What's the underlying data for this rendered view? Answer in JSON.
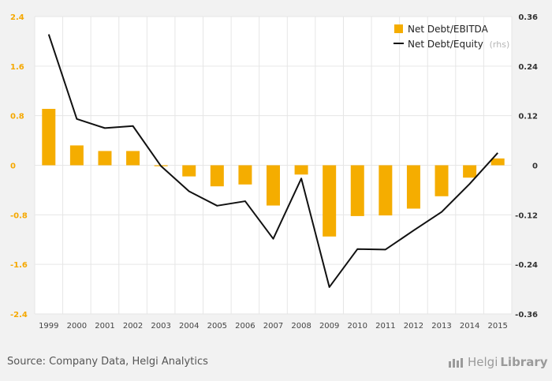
{
  "chart_data": {
    "type": "bar",
    "categories": [
      "1999",
      "2000",
      "2001",
      "2002",
      "2003",
      "2004",
      "2005",
      "2006",
      "2007",
      "2008",
      "2009",
      "2010",
      "2011",
      "2012",
      "2013",
      "2014",
      "2015"
    ],
    "series": [
      {
        "name": "Net Debt/EBITDA",
        "type": "bar",
        "axis": "left",
        "color": "#f5ad00",
        "values": [
          0.91,
          0.32,
          0.23,
          0.23,
          -0.01,
          -0.18,
          -0.34,
          -0.31,
          -0.65,
          -0.15,
          -1.15,
          -0.82,
          -0.81,
          -0.7,
          -0.5,
          -0.2,
          0.11
        ]
      },
      {
        "name": "Net Debt/Equity",
        "name_suffix": "(rhs)",
        "type": "line",
        "axis": "right",
        "color": "#111111",
        "values": [
          0.317,
          0.112,
          0.09,
          0.095,
          -0.002,
          -0.063,
          -0.098,
          -0.087,
          -0.178,
          -0.032,
          -0.295,
          -0.203,
          -0.204,
          -0.158,
          -0.113,
          -0.045,
          0.03
        ]
      }
    ],
    "y_left": {
      "min": -2.4,
      "max": 2.4,
      "ticks": [
        "2.4",
        "1.6",
        "0.8",
        "0",
        "-0.8",
        "-1.6",
        "-2.4"
      ]
    },
    "y_right": {
      "min": -0.36,
      "max": 0.36,
      "ticks": [
        "0.36",
        "0.24",
        "0.12",
        "0",
        "-0.12",
        "-0.24",
        "-0.36"
      ]
    },
    "grid": true,
    "legend_position": "top-right"
  },
  "footer": {
    "source": "Source: Company Data, Helgi Analytics",
    "brand_light": "Helgi",
    "brand_bold": "Library"
  },
  "colors": {
    "background": "#f2f2f2",
    "plot_background": "#ffffff",
    "grid": "#e6e6e6",
    "bar": "#f5ad00",
    "line": "#111111"
  }
}
